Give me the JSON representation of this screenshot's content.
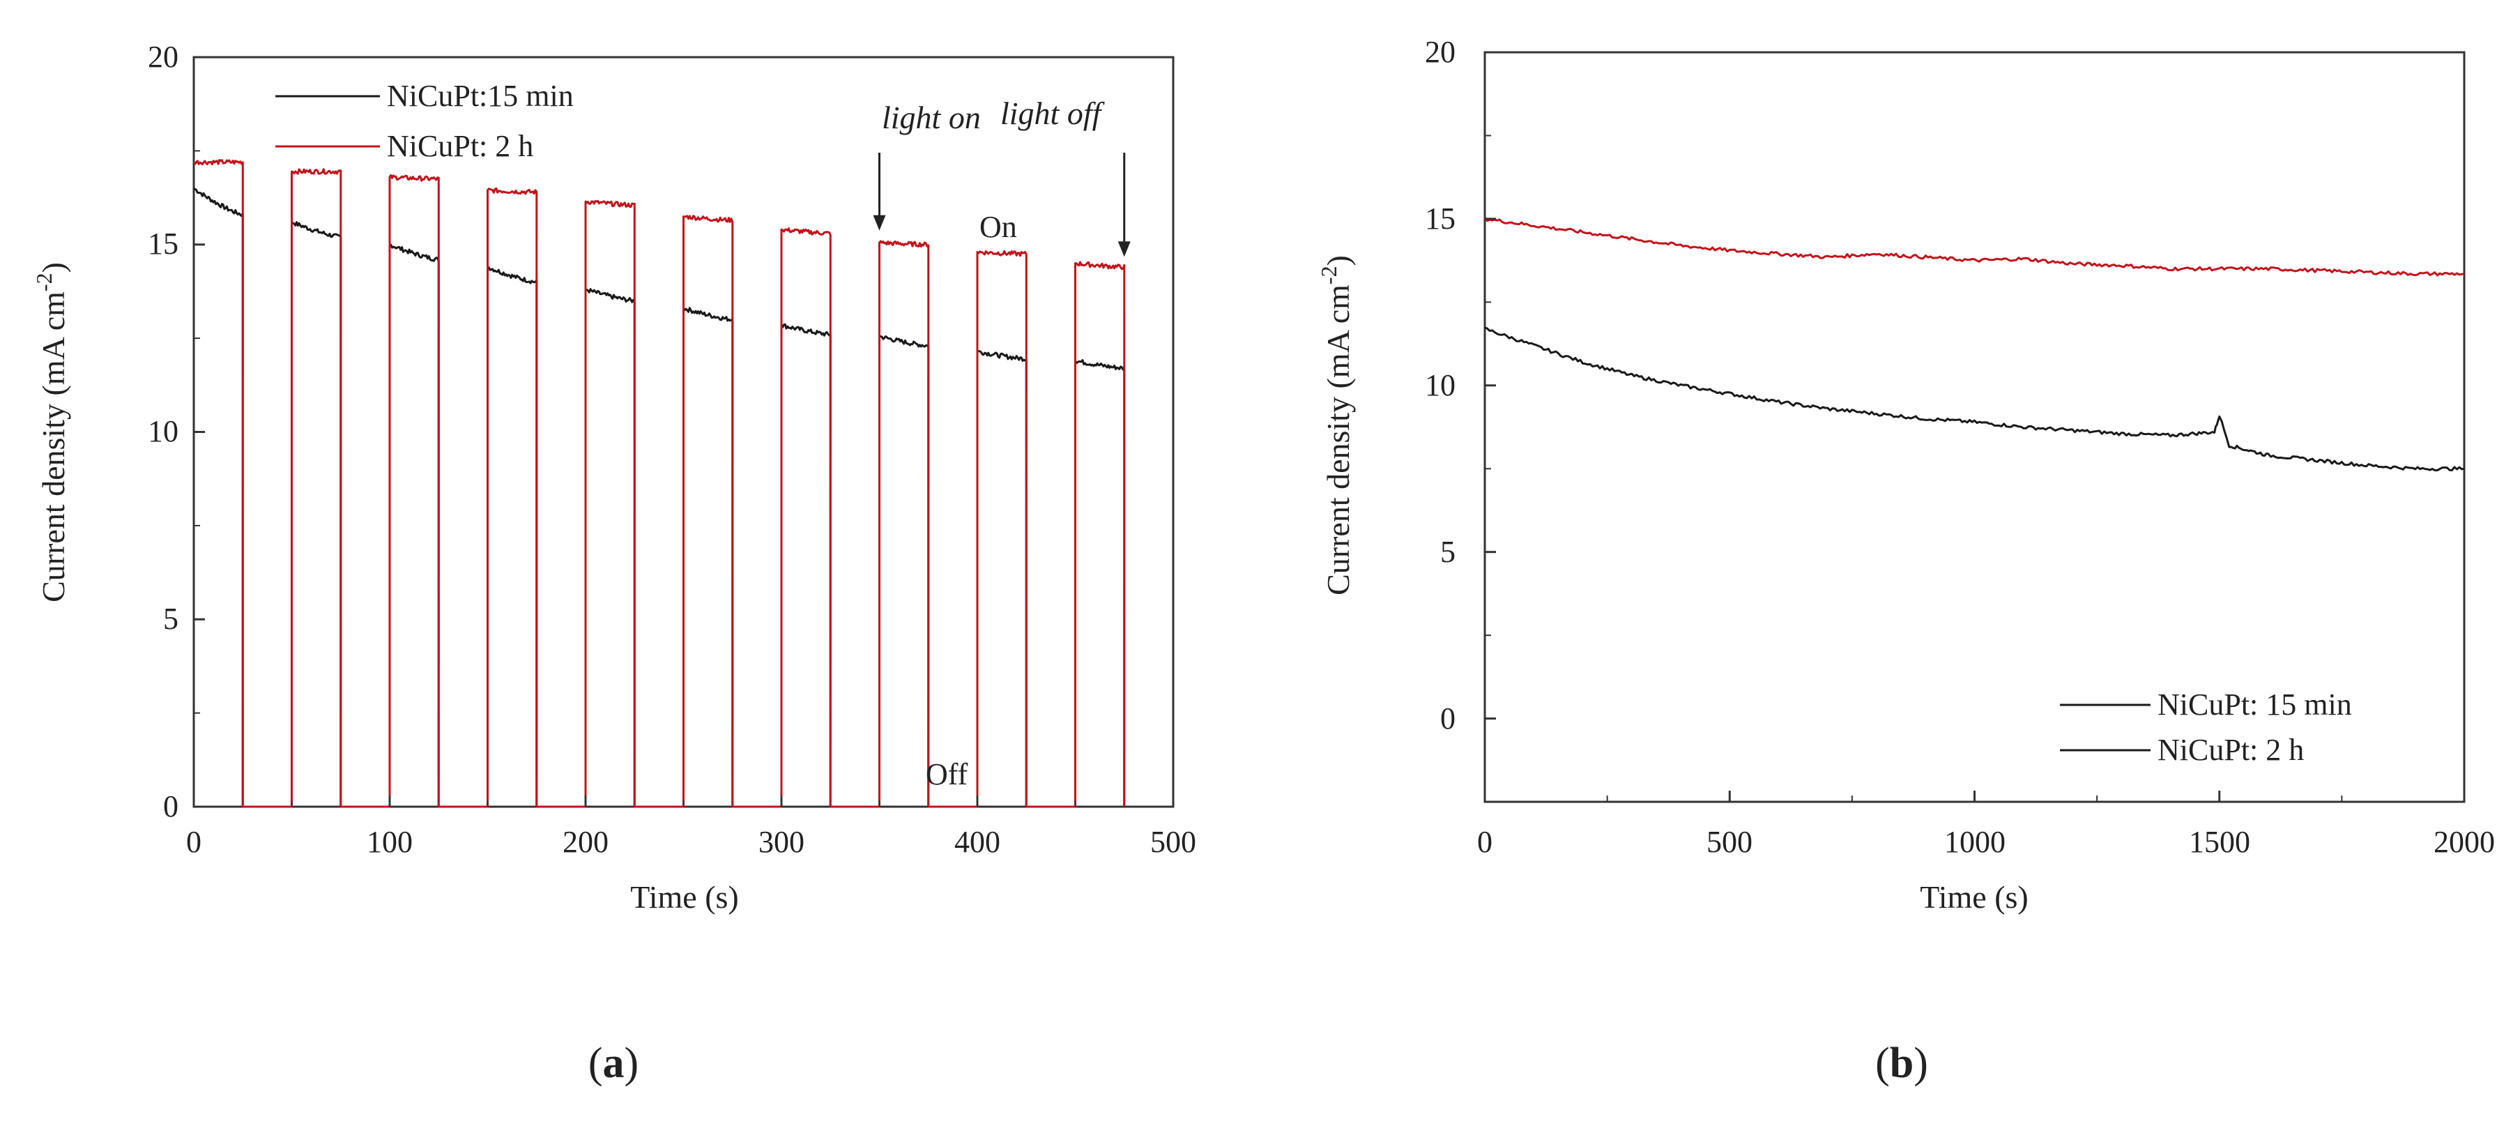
{
  "colors": {
    "series_15min": "#1a1a1a",
    "series_2h": "#c0141c",
    "axis": "#333333"
  },
  "chart_data": [
    {
      "panel": "a",
      "panel_label": {
        "open": "(",
        "letter": "a",
        "close": ")"
      },
      "type": "line",
      "title": "",
      "xlabel": "Time (s)",
      "ylabel": "Current density (mA cm",
      "ylabel_sup": "-2",
      "ylabel_close": ")",
      "xlim": [
        0,
        500
      ],
      "ylim": [
        0,
        20
      ],
      "xticks": [
        0,
        100,
        200,
        300,
        400,
        500
      ],
      "yticks": [
        0,
        5,
        10,
        15,
        20
      ],
      "xtick_labels": [
        "0",
        "100",
        "200",
        "300",
        "400",
        "500"
      ],
      "ytick_labels": [
        "0",
        "5",
        "10",
        "15",
        "20"
      ],
      "legend": [
        "NiCuPt:15 min",
        "NiCuPt: 2 h"
      ],
      "legend_position": "top-left",
      "annotations": [
        {
          "text": "light on",
          "style": "italic",
          "x": 350,
          "y": 17.6,
          "arrow_to": 15.3
        },
        {
          "text": "light off",
          "style": "italic",
          "x": 475,
          "y": 17.6,
          "arrow_to": 14.6
        },
        {
          "text": "On",
          "style": "normal",
          "x": 418,
          "y": 15.2
        },
        {
          "text": "Off",
          "style": "normal",
          "x": 385,
          "y": 0.6
        }
      ],
      "on_periods": [
        [
          0,
          25
        ],
        [
          50,
          75
        ],
        [
          100,
          125
        ],
        [
          150,
          175
        ],
        [
          200,
          225
        ],
        [
          250,
          275
        ],
        [
          300,
          325
        ],
        [
          350,
          375
        ],
        [
          400,
          425
        ],
        [
          450,
          475
        ]
      ],
      "series": [
        {
          "name": "NiCuPt:15 min",
          "starts": [
            16.5,
            15.6,
            15.0,
            14.4,
            13.8,
            13.3,
            12.85,
            12.55,
            12.15,
            11.9
          ],
          "ends": [
            15.8,
            15.2,
            14.6,
            14.0,
            13.5,
            13.0,
            12.6,
            12.3,
            11.95,
            11.7
          ]
        },
        {
          "name": "NiCuPt: 2 h",
          "starts": [
            17.2,
            16.95,
            16.8,
            16.45,
            16.15,
            15.75,
            15.4,
            15.05,
            14.8,
            14.5
          ],
          "ends": [
            17.2,
            16.95,
            16.75,
            16.4,
            16.05,
            15.65,
            15.3,
            15.0,
            14.75,
            14.4
          ]
        }
      ]
    },
    {
      "panel": "b",
      "panel_label": {
        "open": "(",
        "letter": "b",
        "close": ")"
      },
      "type": "line",
      "title": "",
      "xlabel": "Time (s)",
      "ylabel": "Current density (mA cm",
      "ylabel_sup": "-2",
      "ylabel_close": ")",
      "xlim": [
        0,
        2000
      ],
      "ylim": [
        -2.5,
        20
      ],
      "xticks": [
        0,
        500,
        1000,
        1500,
        2000
      ],
      "yticks": [
        0,
        5,
        10,
        15,
        20
      ],
      "xtick_labels": [
        "0",
        "500",
        "1000",
        "1500",
        "2000"
      ],
      "ytick_labels": [
        "0",
        "5",
        "10",
        "15",
        "20"
      ],
      "legend": [
        "NiCuPt: 15 min",
        "NiCuPt: 2 h"
      ],
      "legend_position": "bottom-right",
      "series": [
        {
          "name": "NiCuPt: 15 min",
          "x": [
            0,
            100,
            200,
            300,
            400,
            500,
            600,
            700,
            800,
            900,
            1000,
            1100,
            1200,
            1300,
            1400,
            1490,
            1500,
            1520,
            1600,
            1700,
            1800,
            1900,
            2000
          ],
          "y": [
            11.7,
            11.2,
            10.7,
            10.3,
            10.0,
            9.75,
            9.5,
            9.3,
            9.15,
            9.0,
            8.9,
            8.75,
            8.65,
            8.55,
            8.5,
            8.6,
            9.1,
            8.2,
            7.9,
            7.75,
            7.6,
            7.5,
            7.5
          ]
        },
        {
          "name": "NiCuPt: 2 h",
          "x": [
            0,
            100,
            200,
            300,
            400,
            500,
            600,
            700,
            800,
            900,
            1000,
            1100,
            1200,
            1300,
            1400,
            1500,
            1600,
            1700,
            1800,
            1900,
            2000
          ],
          "y": [
            15.0,
            14.8,
            14.6,
            14.4,
            14.2,
            14.05,
            13.95,
            13.85,
            13.95,
            13.85,
            13.75,
            13.8,
            13.65,
            13.6,
            13.5,
            13.5,
            13.5,
            13.45,
            13.4,
            13.35,
            13.35
          ]
        }
      ]
    }
  ]
}
